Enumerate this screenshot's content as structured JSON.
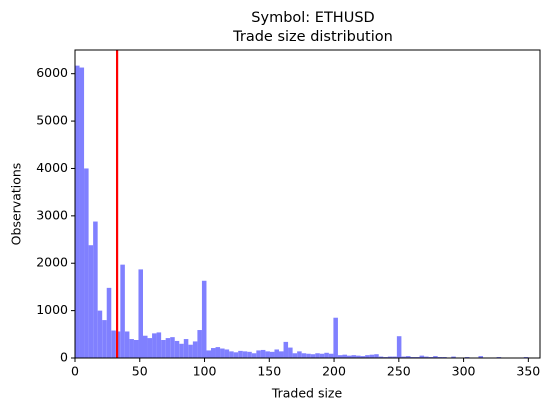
{
  "chart_data": {
    "type": "histogram",
    "title": "Symbol: ETHUSD",
    "subtitle": "Trade size distribution",
    "x_label": "Traded size",
    "y_label": "Observations",
    "color": "#8080ff",
    "bins": [
      0,
      3.5,
      7,
      10.5,
      14,
      17.5,
      21,
      24.5,
      28,
      31.5,
      35,
      38.5,
      42,
      45.5,
      49,
      52.5,
      56,
      59.5,
      63,
      66.5,
      70,
      73.5,
      77,
      80.5,
      84,
      87.5,
      91,
      94.5,
      98,
      101.5,
      105,
      108.5,
      112,
      115.5,
      119,
      122.5,
      126,
      129.5,
      133,
      136.5,
      140,
      143.5,
      147,
      150.5,
      154,
      157.5,
      161,
      164.5,
      168,
      171.5,
      175,
      178.5,
      182,
      185.5,
      189,
      192.5,
      196,
      199.5,
      203,
      206.5,
      210,
      213.5,
      217,
      220.5,
      224,
      227.5,
      231,
      234.5,
      238,
      241.5,
      245,
      248.5,
      252,
      255.5,
      259,
      262.5,
      266,
      269.5,
      273,
      276.5,
      280,
      283.5,
      287,
      290.5,
      294,
      297.5,
      301,
      304.5,
      308,
      311.5,
      315,
      318.5,
      322,
      325.5,
      329,
      332.5,
      336,
      339.5,
      343,
      346.5,
      350
    ],
    "values": [
      6170,
      6130,
      4000,
      2380,
      2880,
      1000,
      800,
      1480,
      580,
      560,
      1970,
      560,
      400,
      380,
      1870,
      470,
      420,
      520,
      540,
      380,
      420,
      440,
      360,
      300,
      400,
      280,
      350,
      590,
      1630,
      160,
      210,
      230,
      200,
      180,
      140,
      120,
      150,
      140,
      130,
      100,
      160,
      170,
      140,
      130,
      180,
      140,
      340,
      220,
      100,
      140,
      100,
      90,
      80,
      100,
      90,
      110,
      90,
      850,
      60,
      70,
      50,
      60,
      50,
      40,
      60,
      70,
      80,
      30,
      20,
      30,
      30,
      460,
      30,
      40,
      20,
      20,
      50,
      30,
      20,
      40,
      20,
      20,
      10,
      30,
      10,
      10,
      20,
      10,
      10,
      40,
      10,
      10,
      10,
      20,
      10,
      10,
      10,
      10,
      10,
      20
    ],
    "vline": {
      "value": 32.5,
      "color": "#ff0000"
    },
    "xlim": [
      0,
      359
    ],
    "xticks": [
      0,
      50,
      100,
      150,
      200,
      250,
      300,
      350
    ],
    "ylim": [
      0,
      6500
    ],
    "yticks": [
      0,
      1000,
      2000,
      3000,
      4000,
      5000,
      6000
    ]
  }
}
